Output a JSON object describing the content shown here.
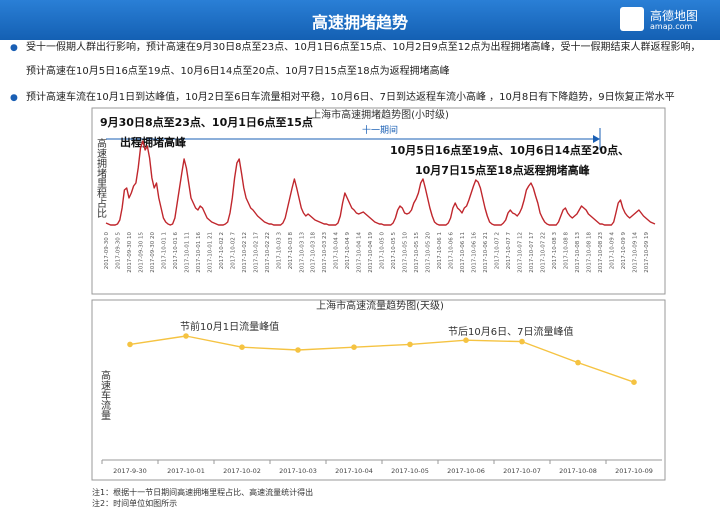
{
  "header": {
    "title": "高速拥堵趋势",
    "logo_text": "高德地图",
    "logo_url": "amap.com"
  },
  "bullets": [
    "受十一假期人群出行影响，预计高速在9月30日8点至23点、10月1日6点至15点、10月2日9点至12点为出程拥堵高峰，受十一假期结束人群返程影响，预计高速在10月5日16点至19点、10月6日14点至20点、10月7日15点至18点为返程拥堵高峰",
    "预计高速车流在10月1日到达峰值，10月2日至6日车流量相对平稳，10月6日、7日到达返程车流小高峰 ，10月8日有下降趋势，9日恢复正常水平"
  ],
  "chart_data": [
    {
      "type": "line",
      "title": "上海市高速拥堵趋势图(小时级)",
      "y_label": "高速拥堵里程占比",
      "annotations": [
        "9月30日8点至23点、10月1日6点至15点",
        "出程拥堵高峰",
        "十一期间",
        "10月5日16点至19点、10月6日14点至20点、",
        "10月7日15点至18点返程拥堵高峰"
      ],
      "categories": [
        "2017-09-30 0",
        null,
        null,
        null,
        null,
        "2017-09-30 5",
        null,
        null,
        null,
        null,
        "2017-09-30 10",
        null,
        null,
        null,
        null,
        "2017-09-30 15",
        null,
        null,
        null,
        null,
        "2017-09-30 20",
        null,
        null,
        null,
        null,
        "2017-10-01 1",
        null,
        null,
        null,
        null,
        "2017-10-01 6",
        null,
        null,
        null,
        null,
        "2017-10-01 11",
        null,
        null,
        null,
        null,
        "2017-10-01 16",
        null,
        null,
        null,
        null,
        "2017-10-01 21",
        null,
        null,
        null,
        null,
        "2017-10-02 2",
        null,
        null,
        null,
        null,
        "2017-10-02 7",
        null,
        null,
        null,
        null,
        "2017-10-02 12",
        null,
        null,
        null,
        null,
        "2017-10-02 17",
        null,
        null,
        null,
        null,
        "2017-10-02 22",
        null,
        null,
        null,
        null,
        "2017-10-03 3",
        null,
        null,
        null,
        null,
        "2017-10-03 8",
        null,
        null,
        null,
        null,
        "2017-10-03 13",
        null,
        null,
        null,
        null,
        "2017-10-03 18",
        null,
        null,
        null,
        null,
        "2017-10-03 23",
        null,
        null,
        null,
        null,
        "2017-10-04 4",
        null,
        null,
        null,
        null,
        "2017-10-04 9",
        null,
        null,
        null,
        null,
        "2017-10-04 14",
        null,
        null,
        null,
        null,
        "2017-10-04 19",
        null,
        null,
        null,
        null,
        "2017-10-05 0",
        null,
        null,
        null,
        null,
        "2017-10-05 5",
        null,
        null,
        null,
        null,
        "2017-10-05 10",
        null,
        null,
        null,
        null,
        "2017-10-05 15",
        null,
        null,
        null,
        null,
        "2017-10-05 20",
        null,
        null,
        null,
        null,
        "2017-10-06 1",
        null,
        null,
        null,
        null,
        "2017-10-06 6",
        null,
        null,
        null,
        null,
        "2017-10-06 11",
        null,
        null,
        null,
        null,
        "2017-10-06 16",
        null,
        null,
        null,
        null,
        "2017-10-06 21",
        null,
        null,
        null,
        null,
        "2017-10-07 2",
        null,
        null,
        null,
        null,
        "2017-10-07 7",
        null,
        null,
        null,
        null,
        "2017-10-07 12",
        null,
        null,
        null,
        null,
        "2017-10-07 17",
        null,
        null,
        null,
        null,
        "2017-10-07 22",
        null,
        null,
        null,
        null,
        "2017-10-08 3",
        null,
        null,
        null,
        null,
        "2017-10-08 8",
        null,
        null,
        null,
        null,
        "2017-10-08 13",
        null,
        null,
        null,
        null,
        "2017-10-08 18",
        null,
        null,
        null,
        null,
        "2017-10-08 23",
        null,
        null,
        null,
        null,
        "2017-10-09 4",
        null,
        null,
        null,
        null,
        "2017-10-09 9",
        null,
        null,
        null,
        null,
        "2017-10-09 14",
        null,
        null,
        null,
        null,
        "2017-10-09 19",
        null,
        null,
        null,
        null
      ],
      "series": [
        {
          "name": "高速拥堵里程占比",
          "color": "#c0272d",
          "values": [
            5,
            4,
            3,
            3,
            3,
            4,
            8,
            20,
            38,
            40,
            30,
            35,
            42,
            45,
            60,
            80,
            87,
            78,
            82,
            70,
            50,
            40,
            45,
            30,
            20,
            10,
            6,
            4,
            3,
            4,
            10,
            25,
            40,
            55,
            69,
            60,
            45,
            30,
            25,
            20,
            18,
            22,
            20,
            15,
            10,
            8,
            6,
            5,
            4,
            3,
            3,
            3,
            4,
            6,
            15,
            30,
            50,
            65,
            69,
            55,
            40,
            30,
            25,
            20,
            18,
            15,
            12,
            10,
            8,
            6,
            5,
            4,
            4,
            3,
            3,
            3,
            3,
            5,
            10,
            20,
            30,
            40,
            49,
            40,
            30,
            20,
            15,
            12,
            14,
            12,
            10,
            8,
            7,
            6,
            5,
            4,
            4,
            3,
            3,
            3,
            3,
            5,
            12,
            25,
            35,
            30,
            25,
            20,
            18,
            15,
            14,
            15,
            16,
            14,
            12,
            10,
            8,
            6,
            5,
            4,
            4,
            3,
            3,
            3,
            3,
            5,
            10,
            18,
            22,
            20,
            15,
            14,
            15,
            18,
            25,
            29,
            35,
            45,
            49,
            40,
            30,
            20,
            12,
            6,
            4,
            3,
            3,
            3,
            3,
            5,
            10,
            20,
            25,
            20,
            18,
            15,
            20,
            22,
            28,
            35,
            42,
            48,
            46,
            40,
            30,
            20,
            12,
            6,
            4,
            3,
            3,
            3,
            3,
            5,
            8,
            15,
            18,
            15,
            14,
            12,
            15,
            20,
            28,
            38,
            42,
            45,
            40,
            32,
            25,
            15,
            10,
            6,
            4,
            3,
            3,
            3,
            3,
            6,
            12,
            18,
            20,
            15,
            12,
            10,
            12,
            14,
            18,
            22,
            20,
            18,
            14,
            12,
            10,
            8,
            6,
            4,
            4,
            3,
            3,
            3,
            3,
            6,
            15,
            25,
            28,
            20,
            15,
            12,
            10,
            12,
            14,
            16,
            18,
            15,
            12,
            10,
            8,
            6,
            5,
            4
          ]
        }
      ],
      "ylim": [
        0,
        100
      ]
    },
    {
      "type": "line",
      "title": "上海市高速流量趋势图(天级)",
      "y_label": "高速车流量",
      "annotations": [
        "节前10月1日流量峰值",
        "节后10月6日、7日流量峰值"
      ],
      "categories": [
        "2017-9-30",
        "2017-10-01",
        "2017-10-02",
        "2017-10-03",
        "2017-10-04",
        "2017-10-05",
        "2017-10-06",
        "2017-10-07",
        "2017-10-08",
        "2017-10-09"
      ],
      "series": [
        {
          "name": "高速车流量",
          "color": "#f5c342",
          "values": [
            79,
            85,
            77,
            75,
            77,
            79,
            82,
            81,
            66,
            52
          ]
        }
      ],
      "ylim": [
        0,
        100
      ],
      "markers": true
    }
  ],
  "notes": [
    "注1：根据十一节日期间高速拥堵里程占比、高速流量统计得出",
    "注2：时间单位如图所示"
  ]
}
